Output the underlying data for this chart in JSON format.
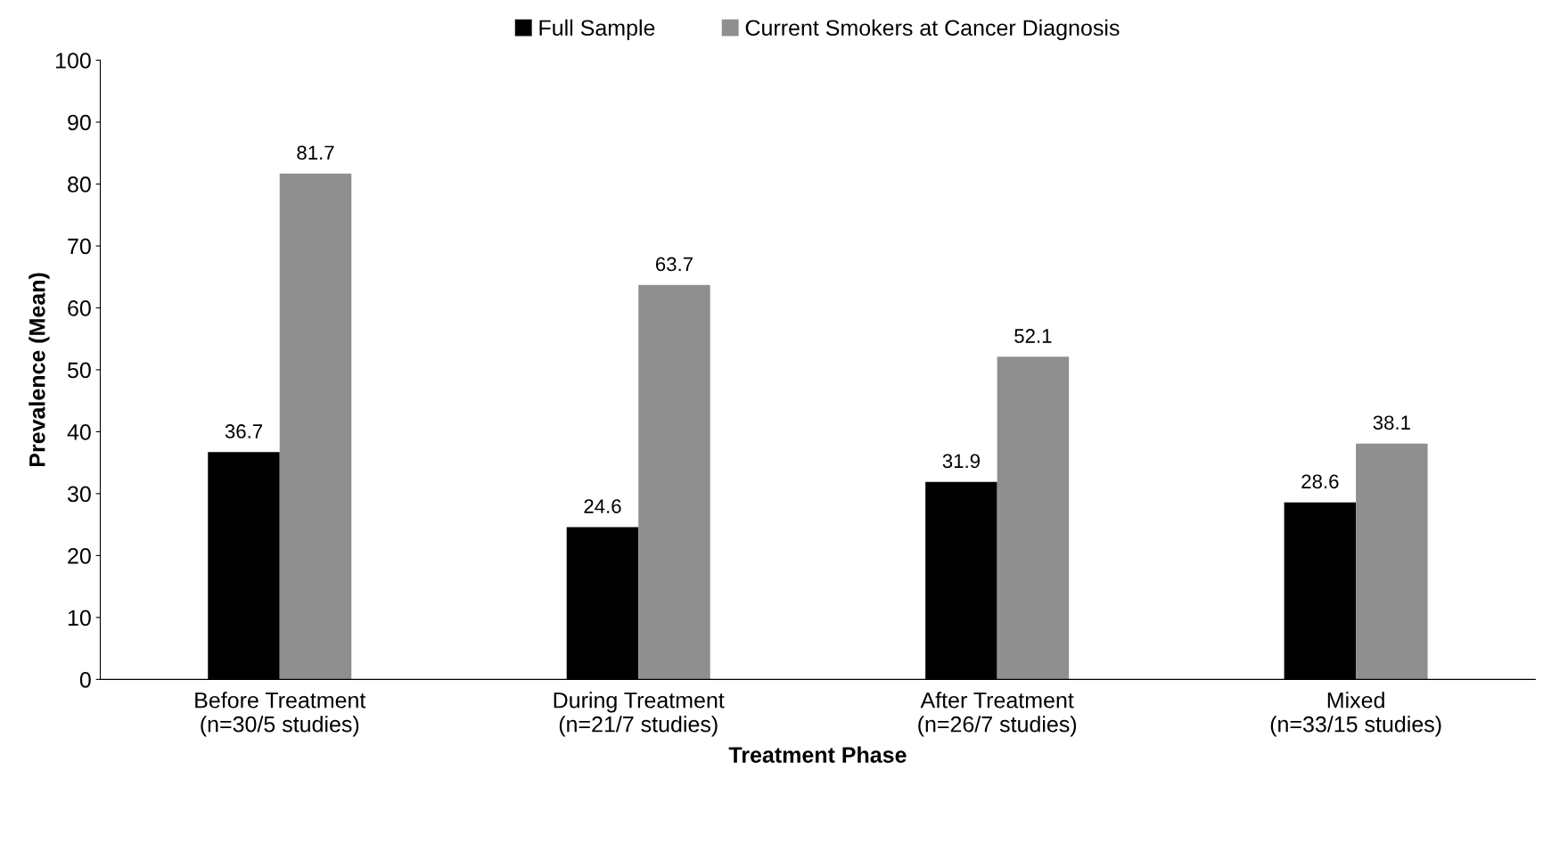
{
  "chart_data": {
    "type": "bar",
    "xlabel": "Treatment Phase",
    "ylabel": "Prevalence (Mean)",
    "categories": [
      "Before Treatment\n(n=30/5 studies)",
      "During Treatment\n(n=21/7 studies)",
      "After Treatment\n(n=26/7 studies)",
      "Mixed\n(n=33/15 studies)"
    ],
    "series": [
      {
        "name": "Full Sample",
        "color": "#000000",
        "values": [
          36.7,
          24.6,
          31.9,
          28.6
        ]
      },
      {
        "name": "Current Smokers at Cancer Diagnosis",
        "color": "#8f8f8f",
        "values": [
          81.7,
          63.7,
          52.1,
          38.1
        ]
      }
    ],
    "ylim": [
      0,
      100
    ],
    "yticks": [
      0,
      10,
      20,
      30,
      40,
      50,
      60,
      70,
      80,
      90,
      100
    ],
    "data_labels": true,
    "grid": false,
    "legend": "top"
  }
}
